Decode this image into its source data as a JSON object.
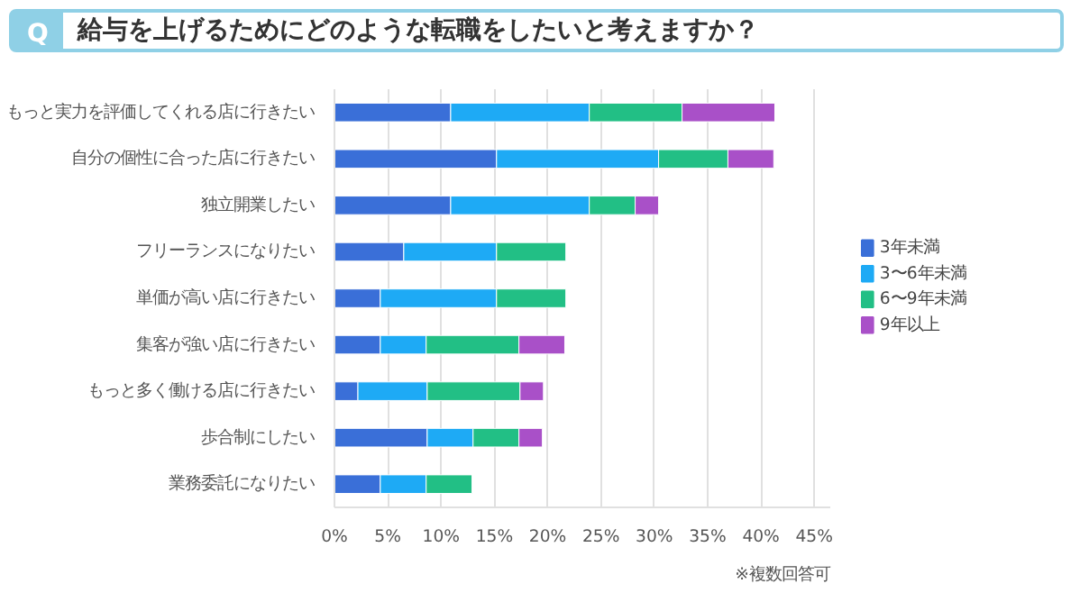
{
  "chart_data": {
    "type": "bar",
    "orientation": "horizontal",
    "stacked": true,
    "title": "給与を上げるためにどのような転職をしたいと考えますか？",
    "annotations": [
      "Q",
      "※複数回答可"
    ],
    "categories": [
      "もっと実力を評価してくれる店に行きたい",
      "自分の個性に合った店に行きたい",
      "独立開業したい",
      "フリーランスになりたい",
      "単価が高い店に行きたい",
      "集客が強い店に行きたい",
      "もっと多く働ける店に行きたい",
      "歩合制にしたい",
      "業務委託になりたい"
    ],
    "series": [
      {
        "name": "3年未満",
        "color": "#3a6fd8",
        "values": [
          10.9,
          15.2,
          10.9,
          6.5,
          4.3,
          4.3,
          2.2,
          8.7,
          4.3
        ]
      },
      {
        "name": "3〜6年未満",
        "color": "#1eaaf5",
        "values": [
          13.0,
          15.2,
          13.0,
          8.7,
          10.9,
          4.3,
          6.5,
          4.3,
          4.3
        ]
      },
      {
        "name": "6〜9年未満",
        "color": "#22bf85",
        "values": [
          8.7,
          6.5,
          4.3,
          6.5,
          6.5,
          8.7,
          8.7,
          4.3,
          4.3
        ]
      },
      {
        "name": "9年以上",
        "color": "#a950c8",
        "values": [
          8.7,
          4.3,
          2.2,
          null,
          null,
          4.3,
          2.2,
          2.2,
          null
        ]
      }
    ],
    "xlim": [
      0,
      46.5
    ],
    "xticks": [
      {
        "value": 0,
        "label": "0%"
      },
      {
        "value": 5,
        "label": "5%"
      },
      {
        "value": 10,
        "label": "10%"
      },
      {
        "value": 15,
        "label": "15%"
      },
      {
        "value": 20,
        "label": "20%"
      },
      {
        "value": 25,
        "label": "25%"
      },
      {
        "value": 30,
        "label": "30%"
      },
      {
        "value": 35,
        "label": "35%"
      },
      {
        "value": 40,
        "label": "40%"
      },
      {
        "value": 45,
        "label": "45%"
      }
    ],
    "grid": "x",
    "legend": "right"
  }
}
